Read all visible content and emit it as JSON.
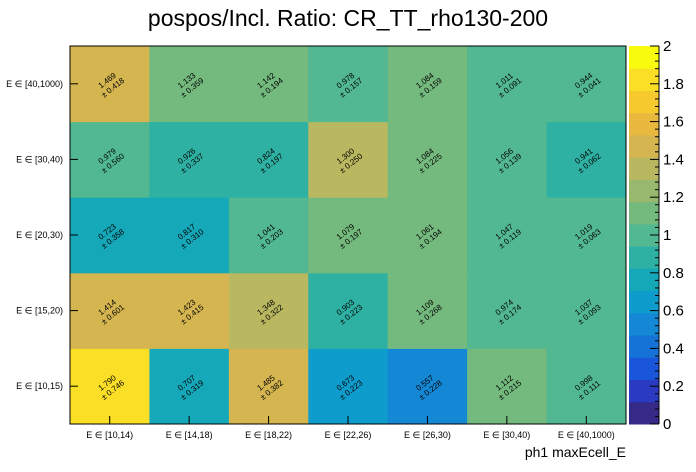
{
  "chart_data": {
    "type": "heatmap",
    "title": "pospos/Incl. Ratio: CR_TT_rho130-200",
    "xlabel": "ph1 maxEcell_E",
    "ylabel": "",
    "x_categories": [
      "E ∈ [10,14)",
      "E ∈ [14,18)",
      "E ∈ [18,22)",
      "E ∈ [22,26)",
      "E ∈ [26,30)",
      "E ∈ [30,40)",
      "E ∈ [40,1000)"
    ],
    "y_categories": [
      "E ∈ [10,15)",
      "E ∈ [15,20)",
      "E ∈ [20,30)",
      "E ∈ [30,40)",
      "E ∈ [40,1000)"
    ],
    "values": [
      [
        1.79,
        0.707,
        1.485,
        0.673,
        0.557,
        1.112,
        0.998
      ],
      [
        1.414,
        1.423,
        1.348,
        0.903,
        1.109,
        0.974,
        1.037
      ],
      [
        0.723,
        0.817,
        1.041,
        1.079,
        1.061,
        1.047,
        1.019
      ],
      [
        0.979,
        0.926,
        0.824,
        1.3,
        1.084,
        1.056,
        0.941
      ],
      [
        1.469,
        1.133,
        1.142,
        0.978,
        1.084,
        1.011,
        0.944
      ]
    ],
    "value_labels": [
      [
        "1.790",
        "0.707",
        "1.485",
        "0.673",
        "0.557",
        "1.112",
        "0.998"
      ],
      [
        "1.414",
        "1.423",
        "1.348",
        "0.903",
        "1.109",
        "0.974",
        "1.037"
      ],
      [
        "0.723",
        "0.817",
        "1.041",
        "1.079",
        "1.061",
        "1.047",
        "1.019"
      ],
      [
        "0.979",
        "0.926",
        "0.824",
        "1.300",
        "1.084",
        "1.056",
        "0.941"
      ],
      [
        "1.469",
        "1.133",
        "1.142",
        "0.978",
        "1.084",
        "1.011",
        "0.944"
      ]
    ],
    "error_labels": [
      [
        "± 0.746",
        "± 0.319",
        "± 0.382",
        "± 0.223",
        "± 0.228",
        "± 0.215",
        "± 0.111"
      ],
      [
        "± 0.601",
        "± 0.415",
        "± 0.322",
        "± 0.223",
        "± 0.268",
        "± 0.174",
        "± 0.093"
      ],
      [
        "± 0.358",
        "± 0.310",
        "± 0.203",
        "± 0.197",
        "± 0.194",
        "± 0.119",
        "± 0.063"
      ],
      [
        "± 0.560",
        "± 0.337",
        "± 0.197",
        "± 0.250",
        "± 0.225",
        "± 0.139",
        "± 0.062"
      ],
      [
        "± 0.418",
        "± 0.359",
        "± 0.194",
        "± 0.157",
        "± 0.159",
        "± 0.091",
        "± 0.041"
      ]
    ],
    "zlim": [
      0,
      2
    ],
    "colorbar_ticks": [
      "0",
      "0.2",
      "0.4",
      "0.6",
      "0.8",
      "1",
      "1.2",
      "1.4",
      "1.6",
      "1.8",
      "2"
    ],
    "palette": [
      "#352a87",
      "#2a3bc2",
      "#1a56d9",
      "#1572d6",
      "#1488d4",
      "#0e9ccc",
      "#14a8b9",
      "#2eb1a3",
      "#52b891",
      "#74b97d",
      "#98b96d",
      "#b9b75f",
      "#d4b550",
      "#e8b83f",
      "#f6c92f",
      "#fbdf27",
      "#f9fb0e"
    ],
    "grid": false,
    "legend": "colorbar-right"
  }
}
